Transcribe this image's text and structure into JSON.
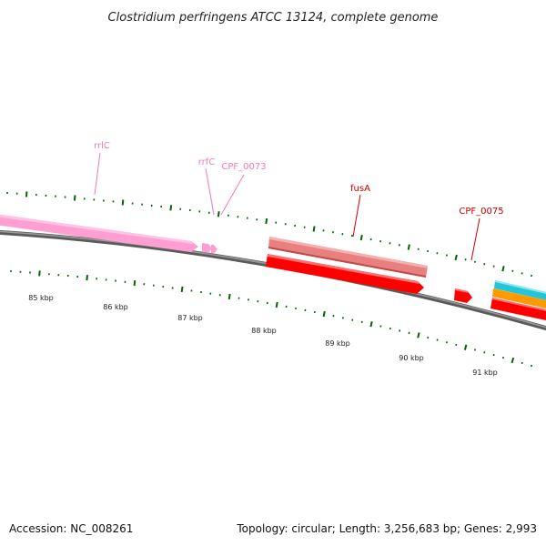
{
  "title": "Clostridium perfringens ATCC 13124, complete genome",
  "footer": {
    "accession": "Accession: NC_008261",
    "summary": "Topology: circular; Length: 3,256,683 bp; Genes: 2,993"
  },
  "colors": {
    "backbone": "#808080",
    "rrna": "#ff9ed2",
    "cds_forward": "#e88080",
    "cds_reverse": "#ff0000",
    "ticks": "#006400",
    "label_rrna": "#f07ab8",
    "label_cds": "#cc0000",
    "cyan_feature": "#22c6d8",
    "orange_feature": "#ff9900"
  },
  "scale": {
    "unit": "kbp",
    "labels": [
      "85 kbp",
      "86 kbp",
      "87 kbp",
      "88 kbp",
      "89 kbp",
      "90 kbp",
      "91 kbp"
    ]
  },
  "genes": [
    {
      "label": "rrlC",
      "type": "rRNA"
    },
    {
      "label": "rrfC",
      "type": "rRNA"
    },
    {
      "label": "CPF_0073",
      "type": "rRNA"
    },
    {
      "label": "fusA",
      "type": "CDS"
    },
    {
      "label": "CPF_0075",
      "type": "CDS"
    }
  ]
}
